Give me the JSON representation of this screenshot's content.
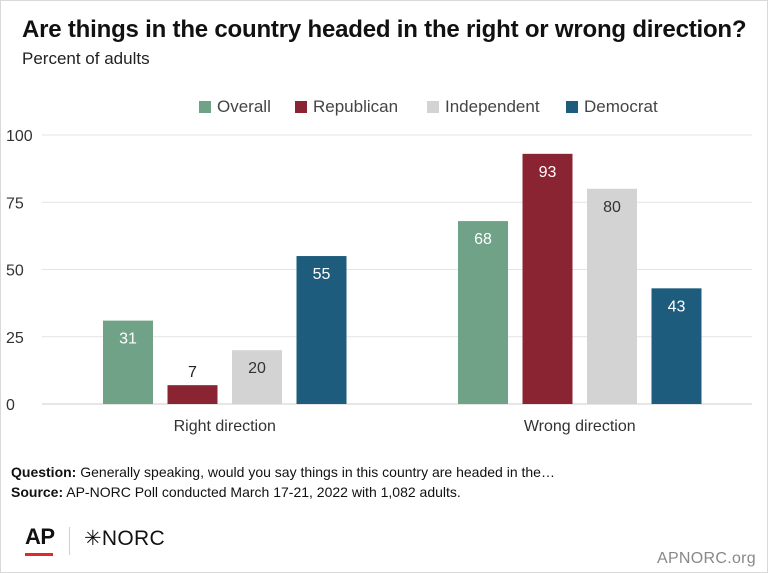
{
  "header": {
    "title": "Are things in the country headed in the right or wrong direction?",
    "subtitle": "Percent of adults"
  },
  "chart_data": {
    "type": "bar",
    "categories": [
      "Right direction",
      "Wrong direction"
    ],
    "series": [
      {
        "name": "Overall",
        "color": "#6fa287",
        "label_color": "#ffffff",
        "values": [
          31,
          68
        ]
      },
      {
        "name": "Republican",
        "color": "#8a2432",
        "label_color": "#ffffff",
        "values": [
          7,
          93
        ]
      },
      {
        "name": "Independent",
        "color": "#d3d3d3",
        "label_color": "#333333",
        "values": [
          20,
          80
        ]
      },
      {
        "name": "Democrat",
        "color": "#1d5c7c",
        "label_color": "#ffffff",
        "values": [
          55,
          43
        ]
      }
    ],
    "yticks": [
      0,
      25,
      50,
      75,
      100
    ],
    "ylim": [
      0,
      100
    ],
    "legend_position": "top",
    "grid": true
  },
  "notes": {
    "question_label": "Question:",
    "question_text": " Generally speaking, would you say things in this country are headed in the…",
    "source_label": "Source:",
    "source_text": " AP-NORC Poll conducted March 17-21, 2022 with 1,082 adults."
  },
  "footer": {
    "ap_logo": "AP",
    "norc_logo": "✳NORC",
    "site": "APNORC.org"
  }
}
